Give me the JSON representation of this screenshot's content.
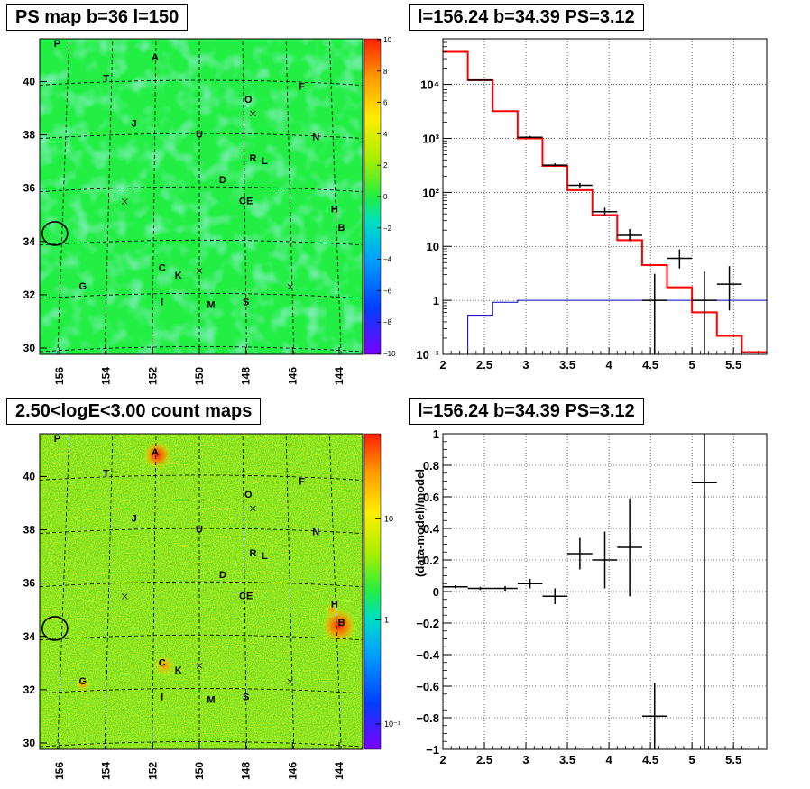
{
  "titles": {
    "ps_map": "PS map b=36 l=150",
    "spectrum": "l=156.24 b=34.39 PS=3.12",
    "count_maps": "2.50<logE<3.00 count maps",
    "residual": "l=156.24 b=34.39 PS=3.12"
  },
  "colors": {
    "map_background": "#22ee44",
    "model_line": "#ff0000",
    "background_line": "#0000cc",
    "data_marker": "#000000"
  },
  "chart_data": [
    {
      "type": "heatmap",
      "title": "PS map b=36 l=150",
      "x_ticks": [
        "156",
        "154",
        "152",
        "150",
        "148",
        "146",
        "144"
      ],
      "y_ticks": [
        "30",
        "32",
        "34",
        "36",
        "38",
        "40"
      ],
      "colorbar_ticks": [
        "10",
        "8",
        "6",
        "4",
        "2",
        "0",
        "−2",
        "−4",
        "−6",
        "−8",
        "−10"
      ],
      "source_labels": [
        "P",
        "A",
        "T",
        "F",
        "O",
        "J",
        "U",
        "N",
        "R",
        "L",
        "D",
        "CE",
        "H",
        "B",
        "C",
        "K",
        "G",
        "I",
        "M",
        "S"
      ],
      "crosses": 4,
      "circles": 1
    },
    {
      "type": "line",
      "title": "l=156.24 b=34.39 PS=3.12",
      "yscale": "log",
      "xlim": [
        2.0,
        5.9
      ],
      "ylim": [
        0.1,
        70000
      ],
      "x_ticks": [
        "2",
        "2.5",
        "3",
        "3.5",
        "4",
        "4.5",
        "5",
        "5.5"
      ],
      "y_ticks": [
        "10⁻¹",
        "1",
        "10",
        "10²",
        "10³",
        "10⁴"
      ],
      "bin_edges": [
        2.0,
        2.3,
        2.6,
        2.9,
        3.2,
        3.5,
        3.8,
        4.1,
        4.4,
        4.7,
        5.0,
        5.3,
        5.6,
        5.9
      ],
      "series": [
        {
          "values": [
            40000,
            12000,
            3200,
            1000,
            310,
            110,
            38,
            13,
            4.5,
            1.75,
            0.6,
            0.22,
            0.11
          ]
        },
        {
          "values": [
            0.1,
            0.53,
            0.92,
            1.0,
            1.0,
            1.0,
            1.0,
            1.0,
            1.0,
            1.0,
            1.0,
            1.0,
            1.0
          ]
        }
      ],
      "points": [
        {
          "x": 2.45,
          "y": 12000,
          "xerr": 0.15,
          "ylo": 11800,
          "yhi": 12200
        },
        {
          "x": 3.05,
          "y": 1050,
          "xerr": 0.15,
          "ylo": 1000,
          "yhi": 1110
        },
        {
          "x": 3.35,
          "y": 320,
          "xerr": 0.15,
          "ylo": 300,
          "yhi": 345
        },
        {
          "x": 3.65,
          "y": 135,
          "xerr": 0.15,
          "ylo": 120,
          "yhi": 150
        },
        {
          "x": 3.95,
          "y": 44,
          "xerr": 0.15,
          "ylo": 37,
          "yhi": 52
        },
        {
          "x": 4.25,
          "y": 16,
          "xerr": 0.15,
          "ylo": 12.5,
          "yhi": 21
        },
        {
          "x": 4.55,
          "y": 1,
          "xerr": 0.15,
          "ylo": 0.1,
          "yhi": 3.1
        },
        {
          "x": 4.85,
          "y": 6,
          "xerr": 0.15,
          "ylo": 3.9,
          "yhi": 8.8
        },
        {
          "x": 5.15,
          "y": 1,
          "xerr": 0.15,
          "ylo": 0.1,
          "yhi": 3.4
        },
        {
          "x": 5.45,
          "y": 2,
          "xerr": 0.15,
          "ylo": 0.65,
          "yhi": 4.3
        }
      ]
    },
    {
      "type": "heatmap",
      "title": "2.50<logE<3.00 count maps",
      "x_ticks": [
        "156",
        "154",
        "152",
        "150",
        "148",
        "146",
        "144"
      ],
      "y_ticks": [
        "30",
        "32",
        "34",
        "36",
        "38",
        "40"
      ],
      "colorbar_ticks": [
        "10",
        "1",
        "10⁻¹"
      ],
      "zscale": "log",
      "source_labels": [
        "P",
        "A",
        "T",
        "F",
        "O",
        "J",
        "U",
        "N",
        "R",
        "L",
        "D",
        "CE",
        "H",
        "B",
        "C",
        "K",
        "G",
        "I",
        "M",
        "S"
      ],
      "crosses": 4,
      "circles": 1
    },
    {
      "type": "scatter",
      "title": "l=156.24 b=34.39 PS=3.12",
      "ylabel": "(data-model)/model",
      "xlim": [
        2.0,
        5.9
      ],
      "ylim": [
        -1.0,
        1.0
      ],
      "x_ticks": [
        "2",
        "2.5",
        "3",
        "3.5",
        "4",
        "4.5",
        "5",
        "5.5"
      ],
      "y_ticks": [
        "−1",
        "−0.8",
        "−0.6",
        "−0.4",
        "−0.2",
        "0",
        "0.2",
        "0.4",
        "0.6",
        "0.8",
        "1"
      ],
      "points": [
        {
          "x": 2.15,
          "y": 0.03,
          "xerr": 0.15,
          "yerr": 0.01
        },
        {
          "x": 2.45,
          "y": 0.02,
          "xerr": 0.15,
          "yerr": 0.01
        },
        {
          "x": 2.75,
          "y": 0.02,
          "xerr": 0.15,
          "yerr": 0.015
        },
        {
          "x": 3.05,
          "y": 0.05,
          "xerr": 0.15,
          "yerr": 0.03
        },
        {
          "x": 3.35,
          "y": -0.03,
          "xerr": 0.15,
          "yerr": 0.05
        },
        {
          "x": 3.65,
          "y": 0.24,
          "xerr": 0.15,
          "yerr": 0.1
        },
        {
          "x": 3.95,
          "y": 0.2,
          "xerr": 0.15,
          "yerr": 0.18
        },
        {
          "x": 4.25,
          "y": 0.28,
          "xerr": 0.15,
          "yerr": 0.31
        },
        {
          "x": 4.55,
          "y": -0.79,
          "xerr": 0.15,
          "yerr": 0.21
        },
        {
          "x": 5.15,
          "y": 0.69,
          "xerr": 0.15,
          "yerr": 1.7
        }
      ]
    }
  ]
}
